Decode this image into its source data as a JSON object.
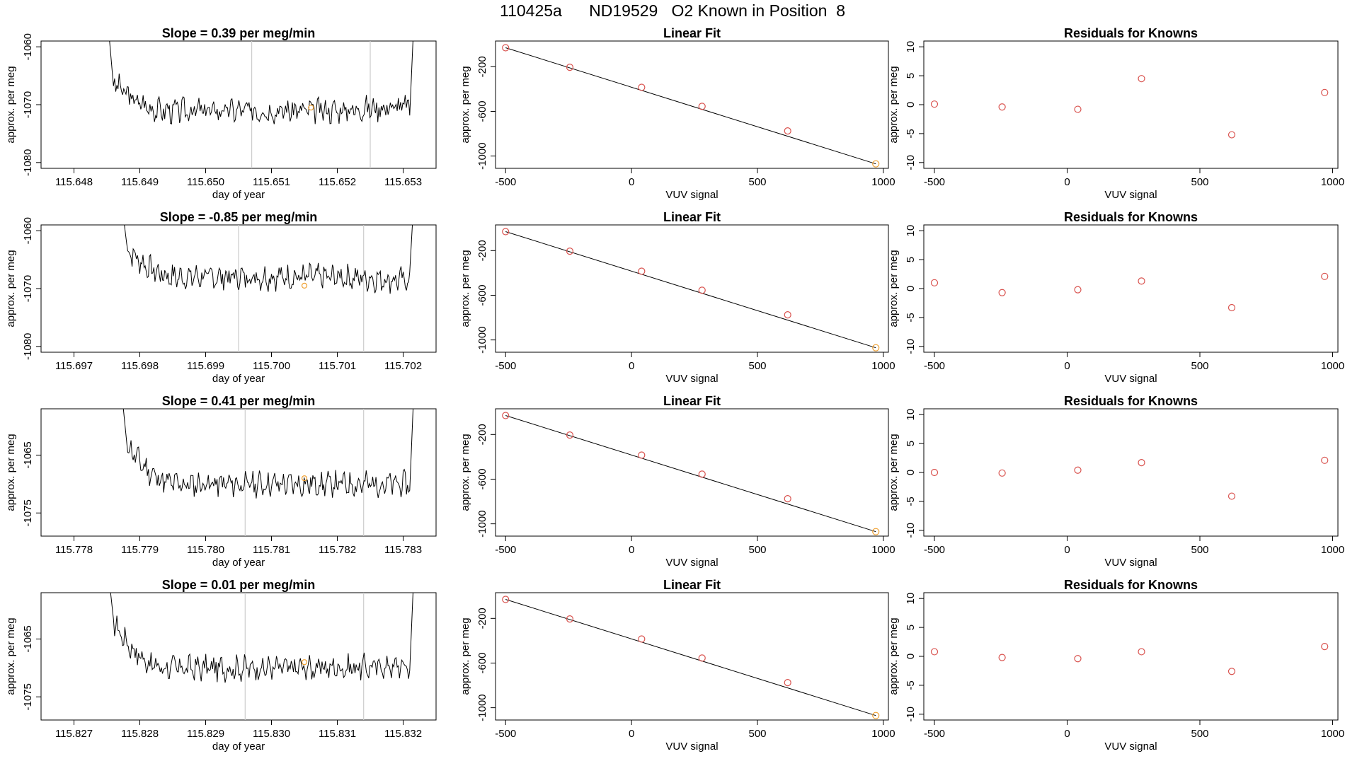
{
  "page_title": "110425a      ND19529   O2 Known in Position  8",
  "colors": {
    "trace": "#000000",
    "fit_line": "#000000",
    "marker": "#d9534f",
    "highlight": "#f0a030",
    "gridline": "#cccccc"
  },
  "chart_data": [
    {
      "type": "line",
      "panel": "time-series",
      "row": 0,
      "title": "Slope =  0.39  per meg/min",
      "xlabel": "day of year",
      "ylabel": "approx. per meg",
      "xlim": [
        115.6475,
        115.6535
      ],
      "ylim": [
        -1081,
        -1059
      ],
      "xticks": [
        115.648,
        115.649,
        115.65,
        115.651,
        115.652,
        115.653
      ],
      "xtick_labels": [
        "115.648",
        "115.649",
        "115.650",
        "115.651",
        "115.652",
        "115.653"
      ],
      "yticks": [
        -1060,
        -1070,
        -1080
      ],
      "ytick_labels": [
        "-1060",
        "-1070",
        "-1080"
      ],
      "vlines": [
        115.6507,
        115.6525
      ],
      "highlight_point": [
        115.6516,
        -1070.5
      ],
      "trace": {
        "x_start": 115.6486,
        "x_end": 115.6531,
        "level_start": -1066,
        "level_end": -1069,
        "mid": -1071,
        "amp": 1.6,
        "seed": 3
      }
    },
    {
      "type": "line",
      "panel": "time-series",
      "row": 1,
      "title": "Slope =  -0.85  per meg/min",
      "xlabel": "day of year",
      "ylabel": "approx. per meg",
      "xlim": [
        115.6965,
        115.7025
      ],
      "ylim": [
        -1081,
        -1059
      ],
      "xticks": [
        115.697,
        115.698,
        115.699,
        115.7,
        115.701,
        115.702
      ],
      "xtick_labels": [
        "115.697",
        "115.698",
        "115.699",
        "115.700",
        "115.701",
        "115.702"
      ],
      "yticks": [
        -1060,
        -1070,
        -1080
      ],
      "ytick_labels": [
        "-1060",
        "-1070",
        "-1080"
      ],
      "vlines": [
        115.6995,
        115.7014
      ],
      "highlight_point": [
        115.7005,
        -1069.5
      ],
      "trace": {
        "x_start": 115.6978,
        "x_end": 115.7021,
        "level_start": -1063,
        "level_end": -1069.5,
        "mid": -1068,
        "amp": 1.6,
        "seed": 7
      }
    },
    {
      "type": "line",
      "panel": "time-series",
      "row": 2,
      "title": "Slope =  0.41  per meg/min",
      "xlabel": "day of year",
      "ylabel": "approx. per meg",
      "xlim": [
        115.7775,
        115.7835
      ],
      "ylim": [
        -1079,
        -1057
      ],
      "xticks": [
        115.778,
        115.779,
        115.78,
        115.781,
        115.782,
        115.783
      ],
      "xtick_labels": [
        "115.778",
        "115.779",
        "115.780",
        "115.781",
        "115.782",
        "115.783"
      ],
      "yticks": [
        -1065,
        -1075
      ],
      "ytick_labels": [
        "-1065",
        "-1075"
      ],
      "vlines": [
        115.7806,
        115.7824
      ],
      "highlight_point": [
        115.7815,
        -1069
      ],
      "trace": {
        "x_start": 115.7788,
        "x_end": 115.7831,
        "level_start": -1063,
        "level_end": -1070,
        "mid": -1070,
        "amp": 1.6,
        "seed": 11
      }
    },
    {
      "type": "line",
      "panel": "time-series",
      "row": 3,
      "title": "Slope =  0.01  per meg/min",
      "xlabel": "day of year",
      "ylabel": "approx. per meg",
      "xlim": [
        115.8265,
        115.8325
      ],
      "ylim": [
        -1079,
        -1057
      ],
      "xticks": [
        115.827,
        115.828,
        115.829,
        115.83,
        115.831,
        115.832
      ],
      "xtick_labels": [
        "115.827",
        "115.828",
        "115.829",
        "115.830",
        "115.831",
        "115.832"
      ],
      "yticks": [
        -1065,
        -1075
      ],
      "ytick_labels": [
        "-1065",
        "-1075"
      ],
      "vlines": [
        115.8296,
        115.8314
      ],
      "highlight_point": [
        115.8305,
        -1069
      ],
      "trace": {
        "x_start": 115.8276,
        "x_end": 115.8321,
        "level_start": -1062,
        "level_end": -1069,
        "mid": -1070,
        "amp": 1.6,
        "seed": 17
      }
    },
    {
      "type": "scatter",
      "panel": "linear-fit",
      "row": 0,
      "title": "Linear Fit",
      "xlabel": "VUV signal",
      "ylabel": "approx. per meg",
      "xlim": [
        -540,
        1020
      ],
      "ylim": [
        -1110,
        30
      ],
      "xticks": [
        -500,
        0,
        500,
        1000
      ],
      "xtick_labels": [
        "-500",
        "0",
        "500",
        "1000"
      ],
      "yticks": [
        -200,
        -600,
        -1000
      ],
      "ytick_labels": [
        "-200",
        "-600",
        "-1000"
      ],
      "x": [
        -500,
        -245,
        40,
        280,
        620,
        970
      ],
      "y": [
        -30,
        -205,
        -385,
        -555,
        -775,
        -1070
      ],
      "fit": {
        "x": [
          -500,
          970
        ],
        "y": [
          -30,
          -1070
        ]
      },
      "highlight_index": 5
    },
    {
      "type": "scatter",
      "panel": "linear-fit",
      "row": 1,
      "title": "Linear Fit",
      "xlabel": "VUV signal",
      "ylabel": "approx. per meg",
      "xlim": [
        -540,
        1020
      ],
      "ylim": [
        -1110,
        30
      ],
      "xticks": [
        -500,
        0,
        500,
        1000
      ],
      "xtick_labels": [
        "-500",
        "0",
        "500",
        "1000"
      ],
      "yticks": [
        -200,
        -600,
        -1000
      ],
      "ytick_labels": [
        "-200",
        "-600",
        "-1000"
      ],
      "x": [
        -500,
        -245,
        40,
        280,
        620,
        970
      ],
      "y": [
        -30,
        -205,
        -385,
        -555,
        -775,
        -1070
      ],
      "fit": {
        "x": [
          -500,
          970
        ],
        "y": [
          -30,
          -1070
        ]
      },
      "highlight_index": 5
    },
    {
      "type": "scatter",
      "panel": "linear-fit",
      "row": 2,
      "title": "Linear Fit",
      "xlabel": "VUV signal",
      "ylabel": "approx. per meg",
      "xlim": [
        -540,
        1020
      ],
      "ylim": [
        -1110,
        30
      ],
      "xticks": [
        -500,
        0,
        500,
        1000
      ],
      "xtick_labels": [
        "-500",
        "0",
        "500",
        "1000"
      ],
      "yticks": [
        -200,
        -600,
        -1000
      ],
      "ytick_labels": [
        "-200",
        "-600",
        "-1000"
      ],
      "x": [
        -500,
        -245,
        40,
        280,
        620,
        970
      ],
      "y": [
        -30,
        -205,
        -385,
        -555,
        -775,
        -1070
      ],
      "fit": {
        "x": [
          -500,
          970
        ],
        "y": [
          -30,
          -1070
        ]
      },
      "highlight_index": 5
    },
    {
      "type": "scatter",
      "panel": "linear-fit",
      "row": 3,
      "title": "Linear Fit",
      "xlabel": "VUV signal",
      "ylabel": "approx. per meg",
      "xlim": [
        -540,
        1020
      ],
      "ylim": [
        -1110,
        30
      ],
      "xticks": [
        -500,
        0,
        500,
        1000
      ],
      "xtick_labels": [
        "-500",
        "0",
        "500",
        "1000"
      ],
      "yticks": [
        -200,
        -600,
        -1000
      ],
      "ytick_labels": [
        "-200",
        "-600",
        "-1000"
      ],
      "x": [
        -500,
        -245,
        40,
        280,
        620,
        970
      ],
      "y": [
        -30,
        -205,
        -385,
        -555,
        -775,
        -1070
      ],
      "fit": {
        "x": [
          -500,
          970
        ],
        "y": [
          -30,
          -1070
        ]
      },
      "highlight_index": 5
    },
    {
      "type": "scatter",
      "panel": "residuals",
      "row": 0,
      "title": "Residuals for Knowns",
      "xlabel": "VUV signal",
      "ylabel": "approx. per meg",
      "xlim": [
        -540,
        1020
      ],
      "ylim": [
        -11,
        11
      ],
      "xticks": [
        -500,
        0,
        500,
        1000
      ],
      "xtick_labels": [
        "-500",
        "0",
        "500",
        "1000"
      ],
      "yticks": [
        10,
        5,
        0,
        -5,
        -10
      ],
      "ytick_labels": [
        "10",
        "5",
        "0",
        "-5",
        "-10"
      ],
      "x": [
        -500,
        -245,
        40,
        280,
        620,
        970
      ],
      "y": [
        0.1,
        -0.4,
        -0.8,
        4.5,
        -5.2,
        2.1
      ]
    },
    {
      "type": "scatter",
      "panel": "residuals",
      "row": 1,
      "title": "Residuals for Knowns",
      "xlabel": "VUV signal",
      "ylabel": "approx. per meg",
      "xlim": [
        -540,
        1020
      ],
      "ylim": [
        -11,
        11
      ],
      "xticks": [
        -500,
        0,
        500,
        1000
      ],
      "xtick_labels": [
        "-500",
        "0",
        "500",
        "1000"
      ],
      "yticks": [
        10,
        5,
        0,
        -5,
        -10
      ],
      "ytick_labels": [
        "10",
        "5",
        "0",
        "-5",
        "-10"
      ],
      "x": [
        -500,
        -245,
        40,
        280,
        620,
        970
      ],
      "y": [
        1.0,
        -0.7,
        -0.2,
        1.3,
        -3.3,
        2.1
      ]
    },
    {
      "type": "scatter",
      "panel": "residuals",
      "row": 2,
      "title": "Residuals for Knowns",
      "xlabel": "VUV signal",
      "ylabel": "approx. per meg",
      "xlim": [
        -540,
        1020
      ],
      "ylim": [
        -11,
        11
      ],
      "xticks": [
        -500,
        0,
        500,
        1000
      ],
      "xtick_labels": [
        "-500",
        "0",
        "500",
        "1000"
      ],
      "yticks": [
        10,
        5,
        0,
        -5,
        -10
      ],
      "ytick_labels": [
        "10",
        "5",
        "0",
        "-5",
        "-10"
      ],
      "x": [
        -500,
        -245,
        40,
        280,
        620,
        970
      ],
      "y": [
        0.0,
        -0.1,
        0.4,
        1.7,
        -4.1,
        2.1
      ]
    },
    {
      "type": "scatter",
      "panel": "residuals",
      "row": 3,
      "title": "Residuals for Knowns",
      "xlabel": "VUV signal",
      "ylabel": "approx. per meg",
      "xlim": [
        -540,
        1020
      ],
      "ylim": [
        -11,
        11
      ],
      "xticks": [
        -500,
        0,
        500,
        1000
      ],
      "xtick_labels": [
        "-500",
        "0",
        "500",
        "1000"
      ],
      "yticks": [
        10,
        5,
        0,
        -5,
        -10
      ],
      "ytick_labels": [
        "10",
        "5",
        "0",
        "-5",
        "-10"
      ],
      "x": [
        -500,
        -245,
        40,
        280,
        620,
        970
      ],
      "y": [
        0.8,
        -0.2,
        -0.4,
        0.8,
        -2.6,
        1.7
      ]
    }
  ]
}
